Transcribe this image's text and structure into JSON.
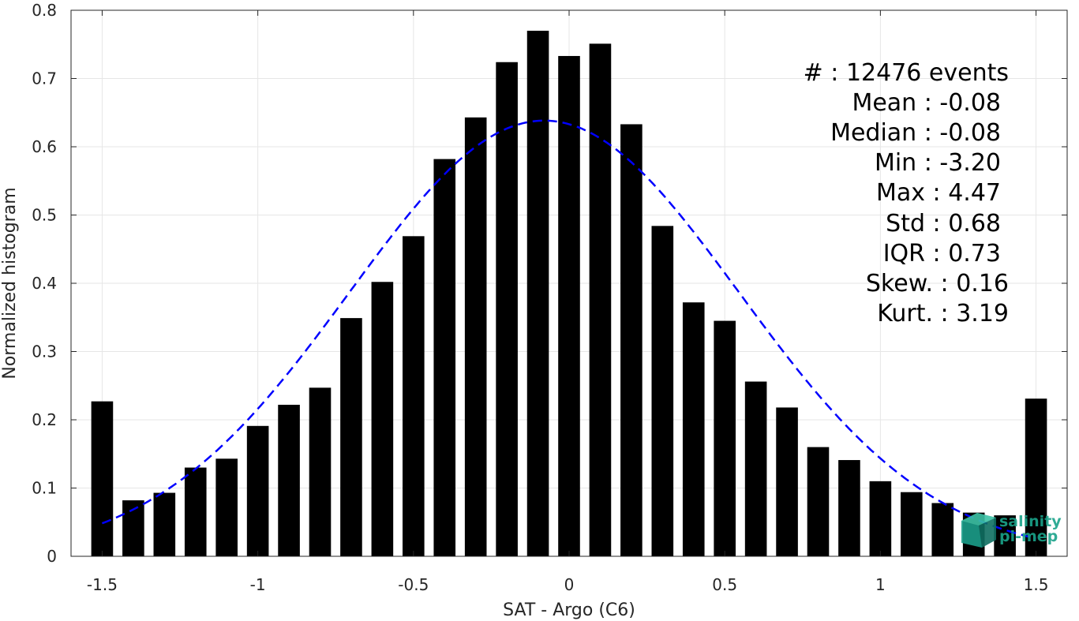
{
  "chart_data": {
    "type": "bar",
    "title": "",
    "xlabel": "SAT - Argo (C6)",
    "ylabel": "Normalized histogram",
    "xlim": [
      -1.6,
      1.6
    ],
    "ylim": [
      0,
      0.8
    ],
    "xticks": [
      -1.5,
      -1,
      -0.5,
      0,
      0.5,
      1,
      1.5
    ],
    "xtick_labels": [
      "-1.5",
      "-1",
      "-0.5",
      "0",
      "0.5",
      "1",
      "1.5"
    ],
    "yticks": [
      0,
      0.1,
      0.2,
      0.3,
      0.4,
      0.5,
      0.6,
      0.7,
      0.8
    ],
    "ytick_labels": [
      "0",
      "0.1",
      "0.2",
      "0.3",
      "0.4",
      "0.5",
      "0.6",
      "0.7",
      "0.8"
    ],
    "grid": true,
    "bar_color": "#000000",
    "x": [
      -1.5,
      -1.4,
      -1.3,
      -1.2,
      -1.1,
      -1.0,
      -0.9,
      -0.8,
      -0.7,
      -0.6,
      -0.5,
      -0.4,
      -0.3,
      -0.2,
      -0.1,
      0.0,
      0.1,
      0.2,
      0.3,
      0.4,
      0.5,
      0.6,
      0.7,
      0.8,
      0.9,
      1.0,
      1.1,
      1.2,
      1.3,
      1.4,
      1.5
    ],
    "values": [
      0.227,
      0.082,
      0.093,
      0.13,
      0.143,
      0.191,
      0.222,
      0.247,
      0.349,
      0.402,
      0.469,
      0.582,
      0.643,
      0.724,
      0.77,
      0.733,
      0.751,
      0.633,
      0.484,
      0.372,
      0.345,
      0.256,
      0.218,
      0.16,
      0.141,
      0.11,
      0.094,
      0.078,
      0.064,
      0.06,
      0.231
    ],
    "fit_curve": {
      "type": "normal",
      "mean": -0.08,
      "std": 0.625,
      "color": "#0000ff",
      "style": "dashed",
      "x_range": [
        -1.5,
        1.5
      ]
    }
  },
  "stats": [
    {
      "label": "#  : 12476 events"
    },
    {
      "label": "Mean : -0.08"
    },
    {
      "label": "Median : -0.08"
    },
    {
      "label": "Min : -3.20"
    },
    {
      "label": "Max : 4.47"
    },
    {
      "label": "Std : 0.68"
    },
    {
      "label": "IQR : 0.73"
    },
    {
      "label": "Skew. : 0.16"
    },
    {
      "label": "Kurt. : 3.19"
    }
  ],
  "logo": {
    "line1": "salinity",
    "line2": "pi-mep",
    "color": "#1aa38a"
  }
}
